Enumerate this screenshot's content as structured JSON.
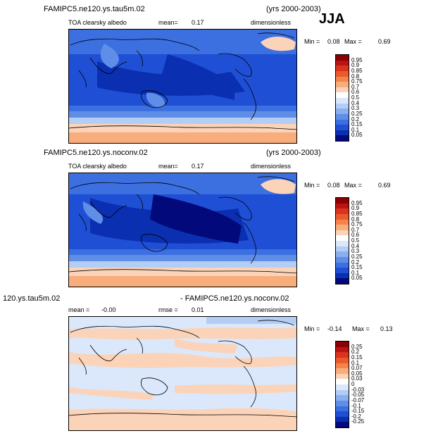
{
  "season": "JJA",
  "panels": [
    {
      "case": "FAMIPC5.ne120.ys.tau5m.02",
      "years": "(yrs 2000-2003)",
      "variable": "TOA clearsky albedo",
      "mean_label": "mean=",
      "mean_value": "0.17",
      "units": "dimensionless",
      "min_label": "Min =",
      "min_value": "0.08",
      "max_label": "Max =",
      "max_value": "0.69"
    },
    {
      "case": "FAMIPC5.ne120.ys.noconv.02",
      "years": "(yrs 2000-2003)",
      "variable": "TOA clearsky albedo",
      "mean_label": "mean=",
      "mean_value": "0.17",
      "units": "dimensionless",
      "min_label": "Min =",
      "min_value": "0.08",
      "max_label": "Max =",
      "max_value": "0.69"
    },
    {
      "case": "120.ys.tau5m.02",
      "case2": "- FAMIPC5.ne120.ys.noconv.02",
      "mean_label": "mean =",
      "mean_value": "-0.00",
      "rmse_label": "rmse =",
      "rmse_value": "0.01",
      "units": "dimensionless",
      "min_label": "Min =",
      "min_value": "-0.14",
      "max_label": "Max =",
      "max_value": "0.13"
    }
  ],
  "colorbar_abs": {
    "labels": [
      "0.95",
      "0.9",
      "0.85",
      "0.8",
      "0.75",
      "0.7",
      "0.6",
      "0.5",
      "0.4",
      "0.3",
      "0.25",
      "0.2",
      "0.15",
      "0.1",
      "0.05"
    ],
    "colors": [
      "#8b0000",
      "#b81414",
      "#d9341d",
      "#ec5a2c",
      "#f5844c",
      "#f8ad7d",
      "#fbd3b8",
      "#ffffff",
      "#dbe8fb",
      "#b4cdf5",
      "#8aafef",
      "#5f8ee8",
      "#3c6fe0",
      "#1f4fd4",
      "#0a2fb0",
      "#02097a"
    ]
  },
  "colorbar_diff": {
    "labels": [
      "0.25",
      "0.2",
      "0.15",
      "0.1",
      "0.07",
      "0.05",
      "0.03",
      "0",
      "-0.03",
      "-0.05",
      "-0.07",
      "-0.1",
      "-0.15",
      "-0.2",
      "-0.25"
    ],
    "colors": [
      "#8b0000",
      "#b81414",
      "#d9341d",
      "#ec5a2c",
      "#f5844c",
      "#f8ad7d",
      "#fbd3b8",
      "#ffffff",
      "#dbe8fb",
      "#b4cdf5",
      "#8aafef",
      "#5f8ee8",
      "#3c6fe0",
      "#1f4fd4",
      "#0a2fb0",
      "#02097a"
    ]
  }
}
